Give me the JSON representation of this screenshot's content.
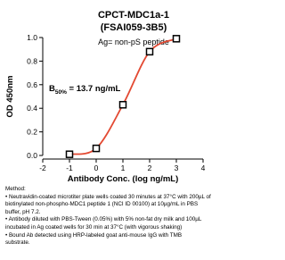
{
  "chart_data": {
    "type": "line",
    "title": "CPCT-MDC1a-1",
    "subtitle": "(FSAI059-3B5)",
    "antigen_label": "Ag= non-pS peptide",
    "annotation": {
      "base": "B",
      "sub": "50%",
      "rest": " = 13.7 ng/mL"
    },
    "x_label": "Antibody Conc. (log ng/mL)",
    "y_label": "OD 450nm",
    "xlim": [
      -2,
      4
    ],
    "xticks": [
      -2,
      -1,
      0,
      1,
      2,
      3,
      4
    ],
    "ylim": [
      0,
      1
    ],
    "yticks": [
      {
        "value": 0,
        "label": "0.0"
      },
      0.2,
      0.4,
      0.6,
      0.8,
      {
        "value": 1,
        "label": "1.0"
      }
    ],
    "series": [
      {
        "color": "#e34a33",
        "marker_color": "#000000",
        "x": [
          -1,
          0,
          1,
          2,
          3
        ],
        "values": [
          0.01,
          0.06,
          0.43,
          0.88,
          0.99
        ]
      }
    ]
  },
  "method": {
    "heading": "Method:",
    "lines": [
      "• Neutravidin-coated microtiter plate wells coated 30 minutes at 37°C with 200µL of",
      "biotinylated non-phospho-MDC1 peptide 1 (NCI ID 00100) at 10µg/mL in PBS",
      "buffer, pH 7.2.",
      "• Antibody diluted with PBS-Tween (0.05%) with 5% non-fat dry milk and 100µL",
      "incubated in Ag coated wells for 30 min at 37°C (with vigorous shaking)",
      "• Bound Ab detected using HRP-labeled goat anti-mouse IgG with TMB",
      "substrate."
    ]
  }
}
